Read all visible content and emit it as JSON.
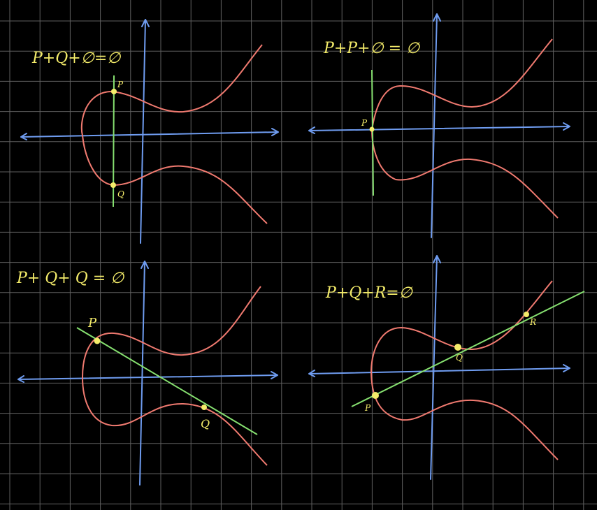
{
  "colors": {
    "background": "#000000",
    "grid": "#5e5e5e",
    "axis": "#6f9cf0",
    "curve": "#f07a70",
    "line": "#86e070",
    "point": "#f4ec6a",
    "text": "#f4ec6a"
  },
  "panels": [
    {
      "equation": "P+Q+∅=∅",
      "labels": [
        {
          "text": "P"
        },
        {
          "text": "Q"
        }
      ]
    },
    {
      "equation": "P+P+∅ = ∅",
      "labels": [
        {
          "text": "P"
        }
      ]
    },
    {
      "equation": "P+ Q+ Q = ∅",
      "labels": [
        {
          "text": "P"
        },
        {
          "text": "Q"
        }
      ]
    },
    {
      "equation": "P+Q+R=∅",
      "labels": [
        {
          "text": "P"
        },
        {
          "text": "Q"
        },
        {
          "text": "R"
        }
      ]
    }
  ]
}
